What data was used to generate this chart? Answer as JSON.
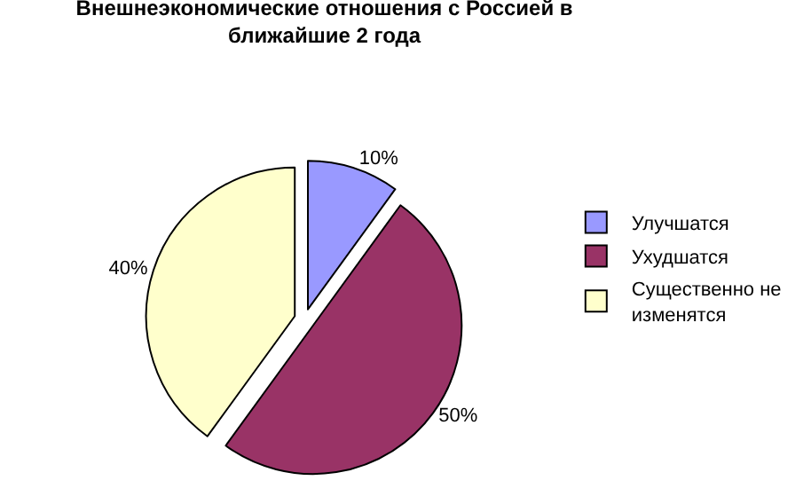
{
  "chart_data": {
    "type": "pie",
    "title": "Внешнеэкономические отношения с Россией в ближайшие 2 года",
    "categories": [
      "Улучшатся",
      "Ухудшатся",
      "Существенно не изменятся"
    ],
    "values": [
      10,
      50,
      40
    ],
    "colors": [
      "#9999ff",
      "#993366",
      "#ffffcc"
    ],
    "value_labels": [
      "10%",
      "50%",
      "40%"
    ],
    "legend": "right"
  }
}
